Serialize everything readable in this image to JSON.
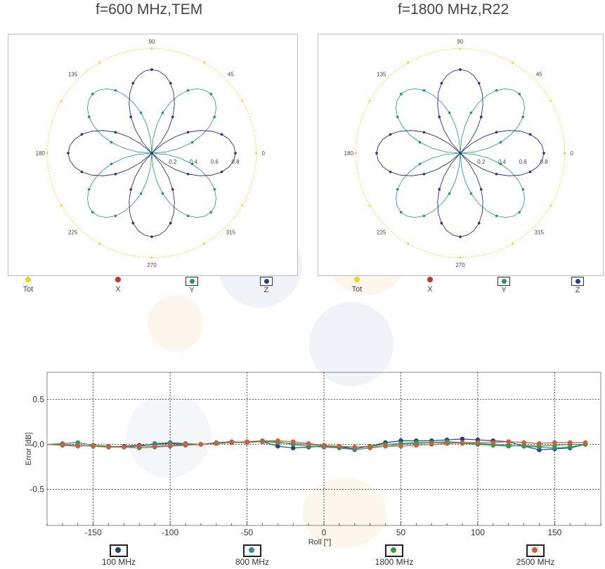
{
  "titles": {
    "left": "f=600 MHz,TEM",
    "right": "f=1800 MHz,R22"
  },
  "colors": {
    "tot": "#f2d21b",
    "x": "#c0392b",
    "y": "#1a9a6b",
    "z": "#1f3f8f",
    "s100": "#1f3f8f",
    "s800": "#2a8f8a",
    "s1800": "#2e9e3e",
    "s2500": "#d9593a",
    "grid": "#333333"
  },
  "polar_legend": [
    "Tot",
    "X",
    "Y",
    "Z"
  ],
  "xy_legend": [
    "100 MHz",
    "800 MHz",
    "1800 MHz",
    "2500 MHz"
  ],
  "chart_data": [
    {
      "type": "line",
      "subtype": "polar",
      "title": "f=600 MHz,TEM",
      "angle_labels": [
        "90",
        "45",
        "0",
        "315",
        "270",
        "225",
        "180",
        "135"
      ],
      "radial_labels": [
        "0.2",
        "0.4",
        "0.6",
        "0.8"
      ],
      "series": [
        {
          "name": "Tot",
          "shape": "circle",
          "r": 1.0
        },
        {
          "name": "X",
          "shape": "rose",
          "orientation_deg": 90,
          "r_max": 0.8
        },
        {
          "name": "Y",
          "shape": "rose",
          "orientation_deg": 45,
          "r_max": 0.8
        },
        {
          "name": "Z",
          "shape": "rose",
          "orientation_deg": 0,
          "r_max": 0.8
        }
      ]
    },
    {
      "type": "line",
      "subtype": "polar",
      "title": "f=1800 MHz,R22",
      "angle_labels": [
        "90",
        "45",
        "0",
        "315",
        "270",
        "225",
        "180",
        "135"
      ],
      "radial_labels": [
        "0.2",
        "0.4",
        "0.6",
        "0.8"
      ],
      "series": [
        {
          "name": "Tot",
          "shape": "circle",
          "r": 1.0
        },
        {
          "name": "X",
          "shape": "rose",
          "orientation_deg": 90,
          "r_max": 0.8
        },
        {
          "name": "Y",
          "shape": "rose",
          "orientation_deg": 45,
          "r_max": 0.8
        },
        {
          "name": "Z",
          "shape": "rose",
          "orientation_deg": 0,
          "r_max": 0.8
        }
      ]
    },
    {
      "type": "line",
      "xlabel": "Roll [°]",
      "ylabel": "Error [dB]",
      "xlim": [
        -180,
        180
      ],
      "ylim": [
        -0.9,
        0.8
      ],
      "xticks": [
        -150,
        -100,
        -50,
        0,
        50,
        100,
        150
      ],
      "yticks": [
        0.5,
        0.0,
        -0.5
      ],
      "ytick_labels": [
        "0.5",
        "0.0",
        "-0.5"
      ],
      "grid": true,
      "x": [
        -180,
        -170,
        -160,
        -150,
        -140,
        -130,
        -120,
        -110,
        -100,
        -90,
        -80,
        -70,
        -60,
        -50,
        -40,
        -30,
        -20,
        -10,
        0,
        10,
        20,
        30,
        40,
        50,
        60,
        70,
        80,
        90,
        100,
        110,
        120,
        130,
        140,
        150,
        160,
        170
      ],
      "series": [
        {
          "name": "100 MHz",
          "values": [
            0.0,
            0.0,
            -0.01,
            -0.02,
            -0.03,
            -0.02,
            -0.01,
            0.0,
            0.01,
            0.0,
            0.0,
            0.01,
            0.02,
            0.03,
            0.03,
            -0.02,
            -0.04,
            -0.03,
            -0.02,
            -0.03,
            -0.05,
            -0.02,
            0.02,
            0.04,
            0.04,
            0.04,
            0.05,
            0.06,
            0.05,
            0.04,
            0.03,
            -0.02,
            -0.06,
            -0.05,
            -0.04,
            0.0
          ]
        },
        {
          "name": "800 MHz",
          "values": [
            0.0,
            0.01,
            0.02,
            -0.01,
            -0.02,
            -0.03,
            -0.02,
            0.01,
            0.02,
            0.01,
            0.0,
            0.02,
            0.03,
            0.02,
            0.04,
            0.03,
            0.0,
            -0.02,
            -0.03,
            -0.04,
            -0.06,
            -0.04,
            -0.02,
            0.0,
            0.01,
            0.02,
            0.03,
            0.02,
            0.01,
            0.0,
            -0.01,
            -0.02,
            -0.03,
            -0.04,
            -0.03,
            0.0
          ]
        },
        {
          "name": "1800 MHz",
          "values": [
            0.0,
            -0.01,
            -0.02,
            -0.01,
            -0.02,
            -0.03,
            -0.04,
            -0.03,
            -0.02,
            -0.01,
            0.0,
            0.01,
            0.02,
            0.02,
            0.03,
            0.02,
            0.01,
            0.0,
            -0.02,
            -0.03,
            -0.03,
            -0.02,
            0.0,
            0.01,
            0.02,
            0.02,
            0.02,
            0.01,
            0.0,
            -0.01,
            -0.02,
            -0.01,
            -0.02,
            -0.01,
            0.0,
            0.0
          ]
        },
        {
          "name": "2500 MHz",
          "values": [
            0.0,
            0.0,
            -0.01,
            -0.02,
            -0.03,
            -0.03,
            -0.02,
            -0.02,
            -0.01,
            0.0,
            0.0,
            0.01,
            0.02,
            0.03,
            0.04,
            0.04,
            0.03,
            0.01,
            -0.01,
            -0.02,
            -0.03,
            -0.03,
            -0.02,
            -0.02,
            -0.01,
            0.0,
            0.01,
            0.02,
            0.02,
            0.02,
            0.03,
            0.02,
            0.01,
            0.02,
            0.02,
            0.02
          ]
        }
      ]
    }
  ]
}
